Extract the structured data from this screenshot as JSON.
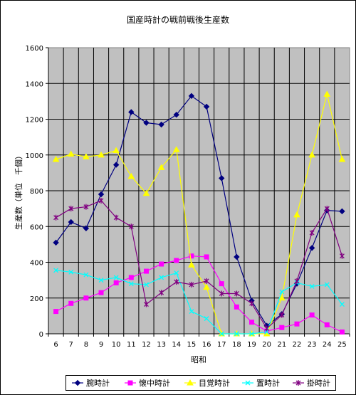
{
  "chart_data": {
    "type": "line",
    "title": "国産時計の戦前戦後生産数",
    "xlabel": "昭和",
    "ylabel": "生産数（単位　千個）",
    "ylim": [
      0,
      1600
    ],
    "yticks": [
      0,
      200,
      400,
      600,
      800,
      1000,
      1200,
      1400,
      1600
    ],
    "grid": true,
    "legend_position": "bottom",
    "plot_background": "#c0c0c0",
    "categories": [
      "6",
      "7",
      "8",
      "9",
      "10",
      "11",
      "12",
      "13",
      "14",
      "15",
      "16",
      "17",
      "18",
      "19",
      "20",
      "21",
      "22",
      "23",
      "24",
      "25"
    ],
    "series": [
      {
        "name": "腕時計",
        "color": "#000080",
        "marker": "diamond",
        "values": [
          510,
          625,
          590,
          780,
          945,
          1240,
          1180,
          1170,
          1225,
          1330,
          1270,
          870,
          430,
          185,
          45,
          110,
          280,
          480,
          690,
          685
        ]
      },
      {
        "name": "懐中時計",
        "color": "#ff00ff",
        "marker": "square",
        "values": [
          125,
          170,
          200,
          230,
          285,
          315,
          350,
          390,
          410,
          435,
          430,
          280,
          150,
          65,
          15,
          35,
          55,
          105,
          50,
          10
        ]
      },
      {
        "name": "目覚時計",
        "color": "#ffff00",
        "marker": "triangle",
        "values": [
          975,
          1005,
          990,
          1000,
          1025,
          880,
          785,
          930,
          1030,
          385,
          260,
          0,
          0,
          0,
          0,
          200,
          665,
          1000,
          1340,
          975
        ]
      },
      {
        "name": "置時計",
        "color": "#00ffff",
        "marker": "x",
        "values": [
          355,
          345,
          330,
          300,
          315,
          280,
          275,
          315,
          340,
          125,
          85,
          0,
          0,
          0,
          10,
          235,
          285,
          265,
          275,
          165
        ]
      },
      {
        "name": "掛時計",
        "color": "#800080",
        "marker": "star",
        "values": [
          650,
          700,
          710,
          745,
          650,
          600,
          165,
          230,
          290,
          275,
          295,
          225,
          225,
          170,
          30,
          105,
          295,
          565,
          700,
          435
        ]
      }
    ]
  }
}
